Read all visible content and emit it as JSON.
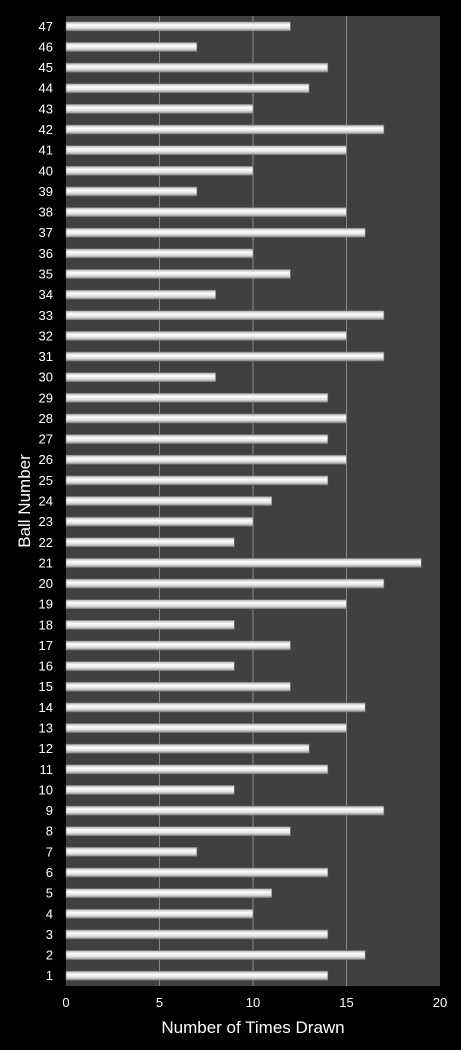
{
  "chart_data": {
    "type": "bar",
    "orientation": "horizontal",
    "title": "",
    "xlabel": "Number of Times Drawn",
    "ylabel": "Ball Number",
    "xlim": [
      0,
      20
    ],
    "xticks": [
      "0",
      "5",
      "10",
      "15",
      "20"
    ],
    "grid": true,
    "legend": "none",
    "colors": {
      "background": "#000000",
      "plot_area": "#404040",
      "gridline": "#8a8a8a",
      "bar_light": "#ffffff",
      "bar_dark": "#9a9a9a",
      "text": "#ffffff"
    },
    "categories": [
      "1",
      "2",
      "3",
      "4",
      "5",
      "6",
      "7",
      "8",
      "9",
      "10",
      "11",
      "12",
      "13",
      "14",
      "15",
      "16",
      "17",
      "18",
      "19",
      "20",
      "21",
      "22",
      "23",
      "24",
      "25",
      "26",
      "27",
      "28",
      "29",
      "30",
      "31",
      "32",
      "33",
      "34",
      "35",
      "36",
      "37",
      "38",
      "39",
      "40",
      "41",
      "42",
      "43",
      "44",
      "45",
      "46",
      "47"
    ],
    "values": [
      14,
      16,
      14,
      10,
      11,
      14,
      7,
      12,
      17,
      9,
      14,
      13,
      15,
      16,
      12,
      9,
      12,
      9,
      15,
      17,
      19,
      9,
      10,
      11,
      14,
      15,
      14,
      15,
      14,
      8,
      17,
      15,
      17,
      8,
      12,
      10,
      16,
      15,
      7,
      10,
      15,
      17,
      10,
      13,
      14,
      7,
      12
    ]
  }
}
